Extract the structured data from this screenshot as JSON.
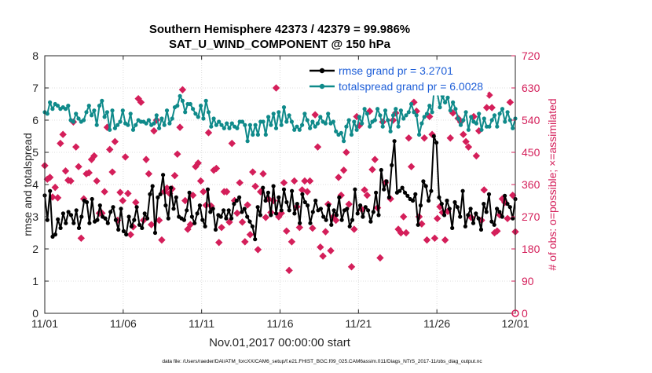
{
  "chart_data": {
    "type": "line",
    "title": "Southern Hemisphere 42373 / 42379 = 99.986%",
    "subtitle": "SAT_U_WIND_COMPONENT @ 150 hPa",
    "xlabel": "Nov.01,2017 00:00:00 start",
    "ylabel_left": "rmse and totalspread",
    "ylabel_right": "# of obs: o=possible; ×=assimilated",
    "footer": "data file: /Users/raeder/DAI/ATM_forcXX/CAM6_setup/f.e21.FHIST_BGC.f09_025.CAM6assim.011/Diags_NTrS_2017-11/obs_diag_output.nc",
    "xlim": [
      0,
      30
    ],
    "ylim_left": [
      0,
      8
    ],
    "ylim_right": [
      0,
      720
    ],
    "xticks": [
      "11/01",
      "11/06",
      "11/11",
      "11/16",
      "11/21",
      "11/26",
      "12/01"
    ],
    "yticks_left": [
      "0",
      "1",
      "2",
      "3",
      "4",
      "5",
      "6",
      "7",
      "8"
    ],
    "yticks_right": [
      "0",
      "90",
      "180",
      "270",
      "360",
      "450",
      "540",
      "630",
      "720"
    ],
    "grid": true,
    "legend": [
      {
        "label": "rmse grand pr = 3.2701",
        "color": "#000000"
      },
      {
        "label": "totalspread grand pr = 6.0028",
        "color": "#0f8a8a"
      }
    ],
    "series": [
      {
        "name": "rmse",
        "color": "#000000",
        "axis": "left",
        "values": [
          3.66,
          2.9,
          3.8,
          2.38,
          2.45,
          2.92,
          2.65,
          3.1,
          2.8,
          3.15,
          3.05,
          2.8,
          3.2,
          2.65,
          3.0,
          3.5,
          3.45,
          2.8,
          3.55,
          2.85,
          2.9,
          3.35,
          3.0,
          2.95,
          2.8,
          3.15,
          3.3,
          2.9,
          2.6,
          3.25,
          2.55,
          2.45,
          3.0,
          2.7,
          2.9,
          3.3,
          2.75,
          2.65,
          3.1,
          2.95,
          3.7,
          3.95,
          2.5,
          3.6,
          3.7,
          4.3,
          3.35,
          2.95,
          3.9,
          3.25,
          3.6,
          3.0,
          2.95,
          2.9,
          3.2,
          3.75,
          3.0,
          2.8,
          3.1,
          3.35,
          2.9,
          2.7,
          3.85,
          3.15,
          3.25,
          2.6,
          3.05,
          3.0,
          3.2,
          2.95,
          3.2,
          2.95,
          3.4,
          3.5,
          3.6,
          3.15,
          3.25,
          3.0,
          2.85,
          2.7,
          2.3,
          3.3,
          3.05,
          3.9,
          3.5,
          3.75,
          3.05,
          3.95,
          3.1,
          3.6,
          3.2,
          3.85,
          3.45,
          3.2,
          3.8,
          3.1,
          3.4,
          2.8,
          3.7,
          3.45,
          3.35,
          2.8,
          3.15,
          3.5,
          3.2,
          3.25,
          3.0,
          2.9,
          3.35,
          2.75,
          3.2,
          3.05,
          3.6,
          2.9,
          3.2,
          3.25,
          2.7,
          2.9,
          3.85,
          3.1,
          3.35,
          3.0,
          3.3,
          3.2,
          2.85,
          3.15,
          3.75,
          3.05,
          4.45,
          3.85,
          4.1,
          3.6,
          4.6,
          5.35,
          3.75,
          3.8,
          3.9,
          3.75,
          3.65,
          3.55,
          3.5,
          3.7,
          2.75,
          3.35,
          4.1,
          3.95,
          3.5,
          3.8,
          5.5,
          5.3,
          3.6,
          3.4,
          3.05,
          3.5,
          3.25,
          2.65,
          3.45,
          3.3,
          3.0,
          3.8,
          2.7,
          3.05,
          3.25,
          2.8,
          3.1,
          2.95,
          2.6,
          3.4,
          3.15,
          3.7,
          2.85,
          2.75,
          3.25,
          3.15,
          3.0,
          3.65,
          3.4,
          3.3,
          2.95,
          3.55
        ]
      },
      {
        "name": "totalspread",
        "color": "#0f8a8a",
        "axis": "left",
        "values": [
          6.25,
          6.2,
          6.55,
          6.35,
          6.5,
          6.45,
          6.35,
          6.4,
          6.35,
          6.45,
          6.0,
          5.95,
          6.2,
          6.05,
          5.95,
          6.0,
          6.25,
          6.45,
          6.15,
          6.3,
          5.85,
          6.45,
          6.6,
          6.1,
          6.25,
          5.7,
          6.3,
          5.75,
          5.85,
          5.95,
          6.3,
          5.9,
          5.85,
          6.2,
          5.7,
          5.85,
          6.0,
          5.95,
          5.95,
          5.9,
          6.0,
          5.85,
          5.9,
          6.15,
          5.75,
          6.05,
          5.85,
          6.3,
          5.9,
          6.05,
          6.4,
          6.45,
          6.75,
          6.6,
          6.25,
          6.5,
          6.5,
          6.35,
          6.2,
          6.1,
          6.45,
          6.05,
          6.6,
          6.25,
          5.8,
          6.05,
          5.85,
          5.95,
          5.85,
          5.75,
          5.9,
          5.75,
          5.9,
          5.8,
          5.75,
          5.95,
          5.95,
          5.85,
          5.35,
          5.85,
          5.55,
          5.85,
          5.55,
          5.95,
          5.95,
          5.55,
          6.1,
          5.85,
          6.2,
          5.75,
          6.25,
          5.85,
          6.4,
          5.95,
          6.15,
          5.95,
          5.7,
          5.8,
          5.7,
          5.85,
          6.2,
          6.0,
          5.75,
          5.95,
          5.8,
          5.9,
          6.1,
          5.95,
          5.9,
          6.2,
          5.9,
          5.95,
          5.65,
          5.55,
          5.6,
          5.35,
          5.8,
          6.0,
          5.55,
          5.95,
          5.7,
          6.1,
          5.9,
          6.35,
          6.2,
          5.8,
          5.95,
          6.0,
          6.35,
          6.15,
          5.8,
          6.3,
          6.0,
          5.65,
          6.15,
          6.35,
          5.8,
          6.3,
          6.05,
          6.15,
          6.25,
          6.5,
          6.25,
          6.15,
          5.55,
          5.9,
          6.1,
          6.2,
          6.45,
          6.25,
          7.15,
          6.85,
          6.4,
          6.75,
          6.55,
          6.7,
          6.3,
          6.55,
          6.35,
          6.05,
          5.85,
          6.0,
          6.25,
          5.7,
          6.1,
          5.95,
          5.9,
          6.2,
          5.7,
          6.05,
          5.8,
          5.8,
          6.0,
          6.15,
          5.8,
          6.2,
          6.35,
          5.95,
          6.25,
          6.0,
          5.75,
          6.05
        ]
      },
      {
        "name": "obs_possible",
        "color": "#d41f5a",
        "axis": "right",
        "marker": "o",
        "values": [
          413,
          375,
          380,
          325,
          352,
          323,
          475,
          500,
          398,
          372,
          370,
          535,
          465,
          410,
          210,
          320,
          390,
          393,
          430,
          440,
          370,
          280,
          280,
          340,
          520,
          458,
          395,
          480,
          260,
          338,
          315,
          437,
          335,
          220,
          242,
          310,
          600,
          590,
          260,
          430,
          390,
          248,
          510,
          540,
          260,
          205,
          340,
          350,
          335,
          348,
          385,
          445,
          520,
          625,
          315,
          235,
          248,
          330,
          410,
          420,
          370,
          340,
          302,
          505,
          300,
          400,
          405,
          198,
          240,
          340,
          340,
          255,
          475,
          315,
          280,
          365,
          255,
          200,
          303,
          220,
          395,
          355,
          178,
          340,
          390,
          268,
          320,
          282,
          315,
          630,
          270,
          280,
          365,
          230,
          120,
          200,
          370,
          298,
          240,
          345,
          370,
          340,
          370,
          238,
          555,
          465,
          185,
          160,
          228,
          305,
          175,
          270,
          260,
          380,
          330,
          400,
          450,
          305,
          130,
          235,
          550,
          525,
          290,
          345,
          330,
          565,
          402,
          430,
          295,
          155,
          535,
          365,
          630,
          320,
          540,
          560,
          235,
          225,
          270,
          225,
          490,
          410,
          590,
          565,
          270,
          250,
          490,
          205,
          550,
          500,
          210,
          265,
          298,
          282,
          205,
          285,
          490,
          560,
          630,
          545,
          535,
          500,
          480,
          465,
          268,
          550,
          440,
          510,
          260,
          345,
          575,
          610,
          575,
          225,
          230,
          275,
          320,
          310,
          265,
          590,
          330,
          228
        ]
      }
    ]
  }
}
